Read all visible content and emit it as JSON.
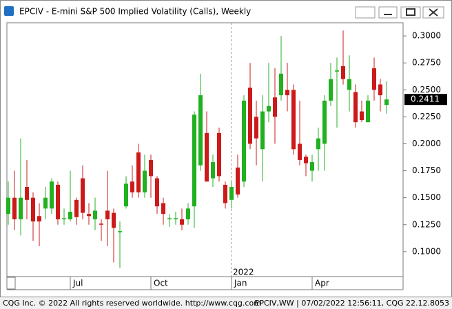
{
  "window_title": "EPCIV - E-mini S&P 500 Implied Volatility (Calls), Weekly",
  "footer_left": "CQG Inc. © 2022 All rights reserved worldwide. http://www.cqg.com",
  "footer_right": "EPCIV,WW | 07/02/2022 12:56:11, CQG 22.12.8053",
  "chart_data": {
    "type": "candlestick",
    "categories": [
      null,
      null,
      null,
      null,
      null,
      null,
      null,
      null,
      null,
      null,
      "Jul",
      null,
      null,
      null,
      null,
      null,
      null,
      null,
      null,
      null,
      null,
      null,
      null,
      "Oct",
      null,
      null,
      null,
      null,
      null,
      null,
      null,
      null,
      null,
      null,
      null,
      null,
      "Jan",
      null,
      null,
      null,
      null,
      null,
      null,
      null,
      null,
      null,
      null,
      null,
      null,
      "Apr",
      null,
      null,
      null,
      null,
      null,
      null,
      null,
      null,
      null,
      null,
      null,
      null
    ],
    "annotation": "2022",
    "open": [
      0.135,
      0.15,
      0.13,
      0.16,
      0.15,
      0.133,
      0.14,
      0.14,
      0.162,
      0.13,
      0.13,
      0.148,
      0.168,
      0.135,
      0.13,
      0.126,
      0.138,
      0.136,
      0.118,
      0.142,
      0.165,
      0.192,
      0.155,
      0.185,
      0.168,
      0.145,
      0.13,
      0.13,
      0.13,
      0.13,
      0.142,
      0.18,
      0.21,
      0.168,
      0.21,
      0.162,
      0.148,
      0.178,
      0.165,
      0.252,
      0.225,
      0.195,
      0.23,
      0.243,
      0.245,
      0.25,
      0.25,
      0.2,
      0.188,
      0.175,
      0.195,
      0.2,
      0.24,
      0.267,
      0.272,
      0.25,
      0.248,
      0.23,
      0.22,
      0.27,
      0.255,
      0.236
    ],
    "high": [
      0.165,
      0.175,
      0.205,
      0.185,
      0.155,
      0.145,
      0.16,
      0.168,
      0.165,
      0.14,
      0.175,
      0.15,
      0.18,
      0.145,
      0.15,
      0.13,
      0.175,
      0.14,
      0.128,
      0.17,
      0.18,
      0.2,
      0.19,
      0.19,
      0.17,
      0.15,
      0.135,
      0.137,
      0.14,
      0.145,
      0.23,
      0.265,
      0.23,
      0.19,
      0.215,
      0.165,
      0.165,
      0.19,
      0.245,
      0.275,
      0.24,
      0.245,
      0.275,
      0.27,
      0.3,
      0.275,
      0.255,
      0.24,
      0.19,
      0.19,
      0.215,
      0.245,
      0.275,
      0.28,
      0.305,
      0.282,
      0.255,
      0.24,
      0.245,
      0.28,
      0.26,
      0.258
    ],
    "low": [
      0.125,
      0.12,
      0.115,
      0.13,
      0.11,
      0.105,
      0.13,
      0.135,
      0.125,
      0.125,
      0.128,
      0.125,
      0.13,
      0.125,
      0.12,
      0.11,
      0.105,
      0.09,
      0.085,
      0.14,
      0.15,
      0.15,
      0.15,
      0.15,
      0.135,
      0.125,
      0.123,
      0.125,
      0.12,
      0.125,
      0.122,
      0.175,
      0.165,
      0.16,
      0.165,
      0.14,
      0.14,
      0.15,
      0.16,
      0.195,
      0.18,
      0.165,
      0.22,
      0.2,
      0.24,
      0.23,
      0.19,
      0.18,
      0.17,
      0.165,
      0.175,
      0.175,
      0.235,
      0.215,
      0.255,
      0.23,
      0.215,
      0.22,
      0.22,
      0.24,
      0.23,
      0.228
    ],
    "close": [
      0.15,
      0.13,
      0.15,
      0.148,
      0.128,
      0.128,
      0.15,
      0.165,
      0.13,
      0.131,
      0.137,
      0.132,
      0.136,
      0.133,
      0.138,
      0.125,
      0.13,
      0.122,
      0.119,
      0.163,
      0.155,
      0.155,
      0.175,
      0.17,
      0.142,
      0.135,
      0.131,
      0.131,
      0.125,
      0.14,
      0.227,
      0.245,
      0.165,
      0.183,
      0.17,
      0.145,
      0.16,
      0.153,
      0.24,
      0.2,
      0.205,
      0.23,
      0.235,
      0.225,
      0.265,
      0.245,
      0.195,
      0.185,
      0.182,
      0.183,
      0.205,
      0.24,
      0.26,
      0.268,
      0.26,
      0.26,
      0.22,
      0.222,
      0.24,
      0.25,
      0.245,
      0.2411
    ],
    "up_color": "#20b020",
    "down_color": "#cc1a1a",
    "last": {
      "value": 0.2411,
      "label": "0.2411"
    },
    "ylim": [
      0.0769,
      0.3122
    ],
    "yticks": [
      {
        "value": 0.1,
        "label": "0.1000"
      },
      {
        "value": 0.125,
        "label": "0.1250"
      },
      {
        "value": 0.15,
        "label": "0.1500"
      },
      {
        "value": 0.175,
        "label": "0.1750"
      },
      {
        "value": 0.2,
        "label": "0.2000"
      },
      {
        "value": 0.225,
        "label": "0.2250"
      },
      {
        "value": 0.25,
        "label": "0.2500"
      },
      {
        "value": 0.275,
        "label": "0.2750"
      },
      {
        "value": 0.3,
        "label": "0.3000"
      }
    ]
  }
}
